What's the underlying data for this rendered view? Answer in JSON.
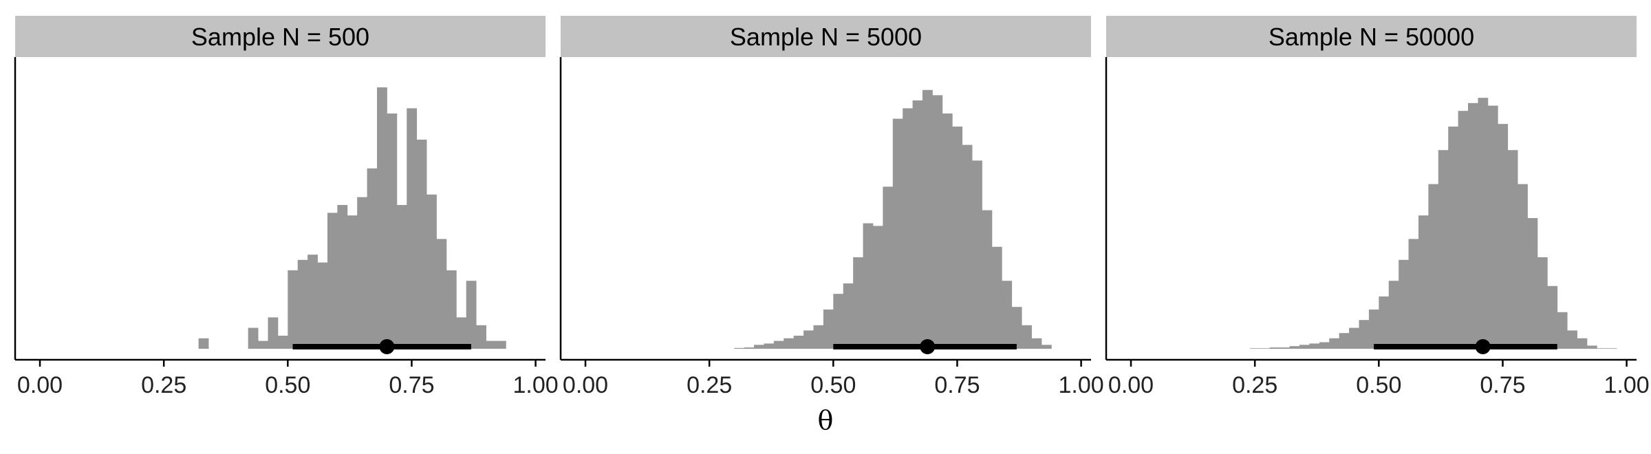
{
  "chart_data": {
    "type": "histogram",
    "xlabel": "θ",
    "xlim": [
      -0.05,
      1.02
    ],
    "x_ticks": [
      "0.00",
      "0.25",
      "0.50",
      "0.75",
      "1.00"
    ],
    "x_tick_values": [
      0.0,
      0.25,
      0.5,
      0.75,
      1.0
    ],
    "y_axis_labels_shown": false,
    "grid": false,
    "bar_color": "#969696",
    "interval_color": "#000000",
    "strip_color": "#c2c2c2",
    "panels": [
      {
        "title": "Sample N = 500",
        "bins": [
          [
            0.32,
            0.34,
            0.04
          ],
          [
            0.42,
            0.44,
            0.08
          ],
          [
            0.44,
            0.46,
            0.03
          ],
          [
            0.46,
            0.48,
            0.12
          ],
          [
            0.48,
            0.5,
            0.05
          ],
          [
            0.5,
            0.52,
            0.3
          ],
          [
            0.52,
            0.54,
            0.34
          ],
          [
            0.54,
            0.56,
            0.36
          ],
          [
            0.56,
            0.58,
            0.33
          ],
          [
            0.58,
            0.6,
            0.52
          ],
          [
            0.6,
            0.62,
            0.55
          ],
          [
            0.62,
            0.64,
            0.51
          ],
          [
            0.64,
            0.66,
            0.58
          ],
          [
            0.66,
            0.68,
            0.69
          ],
          [
            0.68,
            0.7,
            1.0
          ],
          [
            0.7,
            0.72,
            0.9
          ],
          [
            0.72,
            0.74,
            0.55
          ],
          [
            0.74,
            0.76,
            0.92
          ],
          [
            0.76,
            0.78,
            0.8
          ],
          [
            0.78,
            0.8,
            0.59
          ],
          [
            0.8,
            0.82,
            0.42
          ],
          [
            0.82,
            0.84,
            0.3
          ],
          [
            0.84,
            0.86,
            0.12
          ],
          [
            0.86,
            0.88,
            0.26
          ],
          [
            0.88,
            0.9,
            0.09
          ],
          [
            0.9,
            0.94,
            0.03
          ]
        ],
        "interval": [
          0.51,
          0.87
        ],
        "point": 0.7
      },
      {
        "title": "Sample N = 5000",
        "bins": [
          [
            0.3,
            0.32,
            0.003
          ],
          [
            0.32,
            0.34,
            0.005
          ],
          [
            0.34,
            0.36,
            0.015
          ],
          [
            0.36,
            0.38,
            0.02
          ],
          [
            0.38,
            0.4,
            0.03
          ],
          [
            0.4,
            0.42,
            0.04
          ],
          [
            0.42,
            0.44,
            0.05
          ],
          [
            0.44,
            0.46,
            0.07
          ],
          [
            0.46,
            0.48,
            0.09
          ],
          [
            0.48,
            0.5,
            0.15
          ],
          [
            0.5,
            0.52,
            0.21
          ],
          [
            0.52,
            0.54,
            0.25
          ],
          [
            0.54,
            0.56,
            0.35
          ],
          [
            0.56,
            0.58,
            0.48
          ],
          [
            0.58,
            0.6,
            0.47
          ],
          [
            0.6,
            0.62,
            0.62
          ],
          [
            0.62,
            0.64,
            0.88
          ],
          [
            0.64,
            0.66,
            0.92
          ],
          [
            0.66,
            0.68,
            0.95
          ],
          [
            0.68,
            0.7,
            0.99
          ],
          [
            0.7,
            0.72,
            0.97
          ],
          [
            0.72,
            0.74,
            0.9
          ],
          [
            0.74,
            0.76,
            0.85
          ],
          [
            0.76,
            0.78,
            0.78
          ],
          [
            0.78,
            0.8,
            0.72
          ],
          [
            0.8,
            0.82,
            0.53
          ],
          [
            0.82,
            0.84,
            0.39
          ],
          [
            0.84,
            0.86,
            0.26
          ],
          [
            0.86,
            0.88,
            0.16
          ],
          [
            0.88,
            0.9,
            0.09
          ],
          [
            0.9,
            0.92,
            0.04
          ],
          [
            0.92,
            0.94,
            0.015
          ]
        ],
        "interval": [
          0.5,
          0.87
        ],
        "point": 0.69
      },
      {
        "title": "Sample N = 50000",
        "bins": [
          [
            0.24,
            0.28,
            0.002
          ],
          [
            0.28,
            0.32,
            0.005
          ],
          [
            0.32,
            0.34,
            0.01
          ],
          [
            0.34,
            0.36,
            0.015
          ],
          [
            0.36,
            0.38,
            0.02
          ],
          [
            0.38,
            0.4,
            0.025
          ],
          [
            0.4,
            0.42,
            0.04
          ],
          [
            0.42,
            0.44,
            0.06
          ],
          [
            0.44,
            0.46,
            0.08
          ],
          [
            0.46,
            0.48,
            0.11
          ],
          [
            0.48,
            0.5,
            0.15
          ],
          [
            0.5,
            0.52,
            0.2
          ],
          [
            0.52,
            0.54,
            0.26
          ],
          [
            0.54,
            0.56,
            0.34
          ],
          [
            0.56,
            0.58,
            0.42
          ],
          [
            0.58,
            0.6,
            0.51
          ],
          [
            0.6,
            0.62,
            0.63
          ],
          [
            0.62,
            0.64,
            0.76
          ],
          [
            0.64,
            0.66,
            0.85
          ],
          [
            0.66,
            0.68,
            0.91
          ],
          [
            0.68,
            0.7,
            0.94
          ],
          [
            0.7,
            0.72,
            0.96
          ],
          [
            0.72,
            0.74,
            0.93
          ],
          [
            0.74,
            0.76,
            0.86
          ],
          [
            0.76,
            0.78,
            0.76
          ],
          [
            0.78,
            0.8,
            0.63
          ],
          [
            0.8,
            0.82,
            0.5
          ],
          [
            0.82,
            0.84,
            0.35
          ],
          [
            0.84,
            0.86,
            0.24
          ],
          [
            0.86,
            0.88,
            0.14
          ],
          [
            0.88,
            0.9,
            0.07
          ],
          [
            0.9,
            0.92,
            0.04
          ],
          [
            0.92,
            0.94,
            0.012
          ],
          [
            0.94,
            0.98,
            0.002
          ]
        ],
        "interval": [
          0.49,
          0.86
        ],
        "point": 0.71
      }
    ]
  }
}
